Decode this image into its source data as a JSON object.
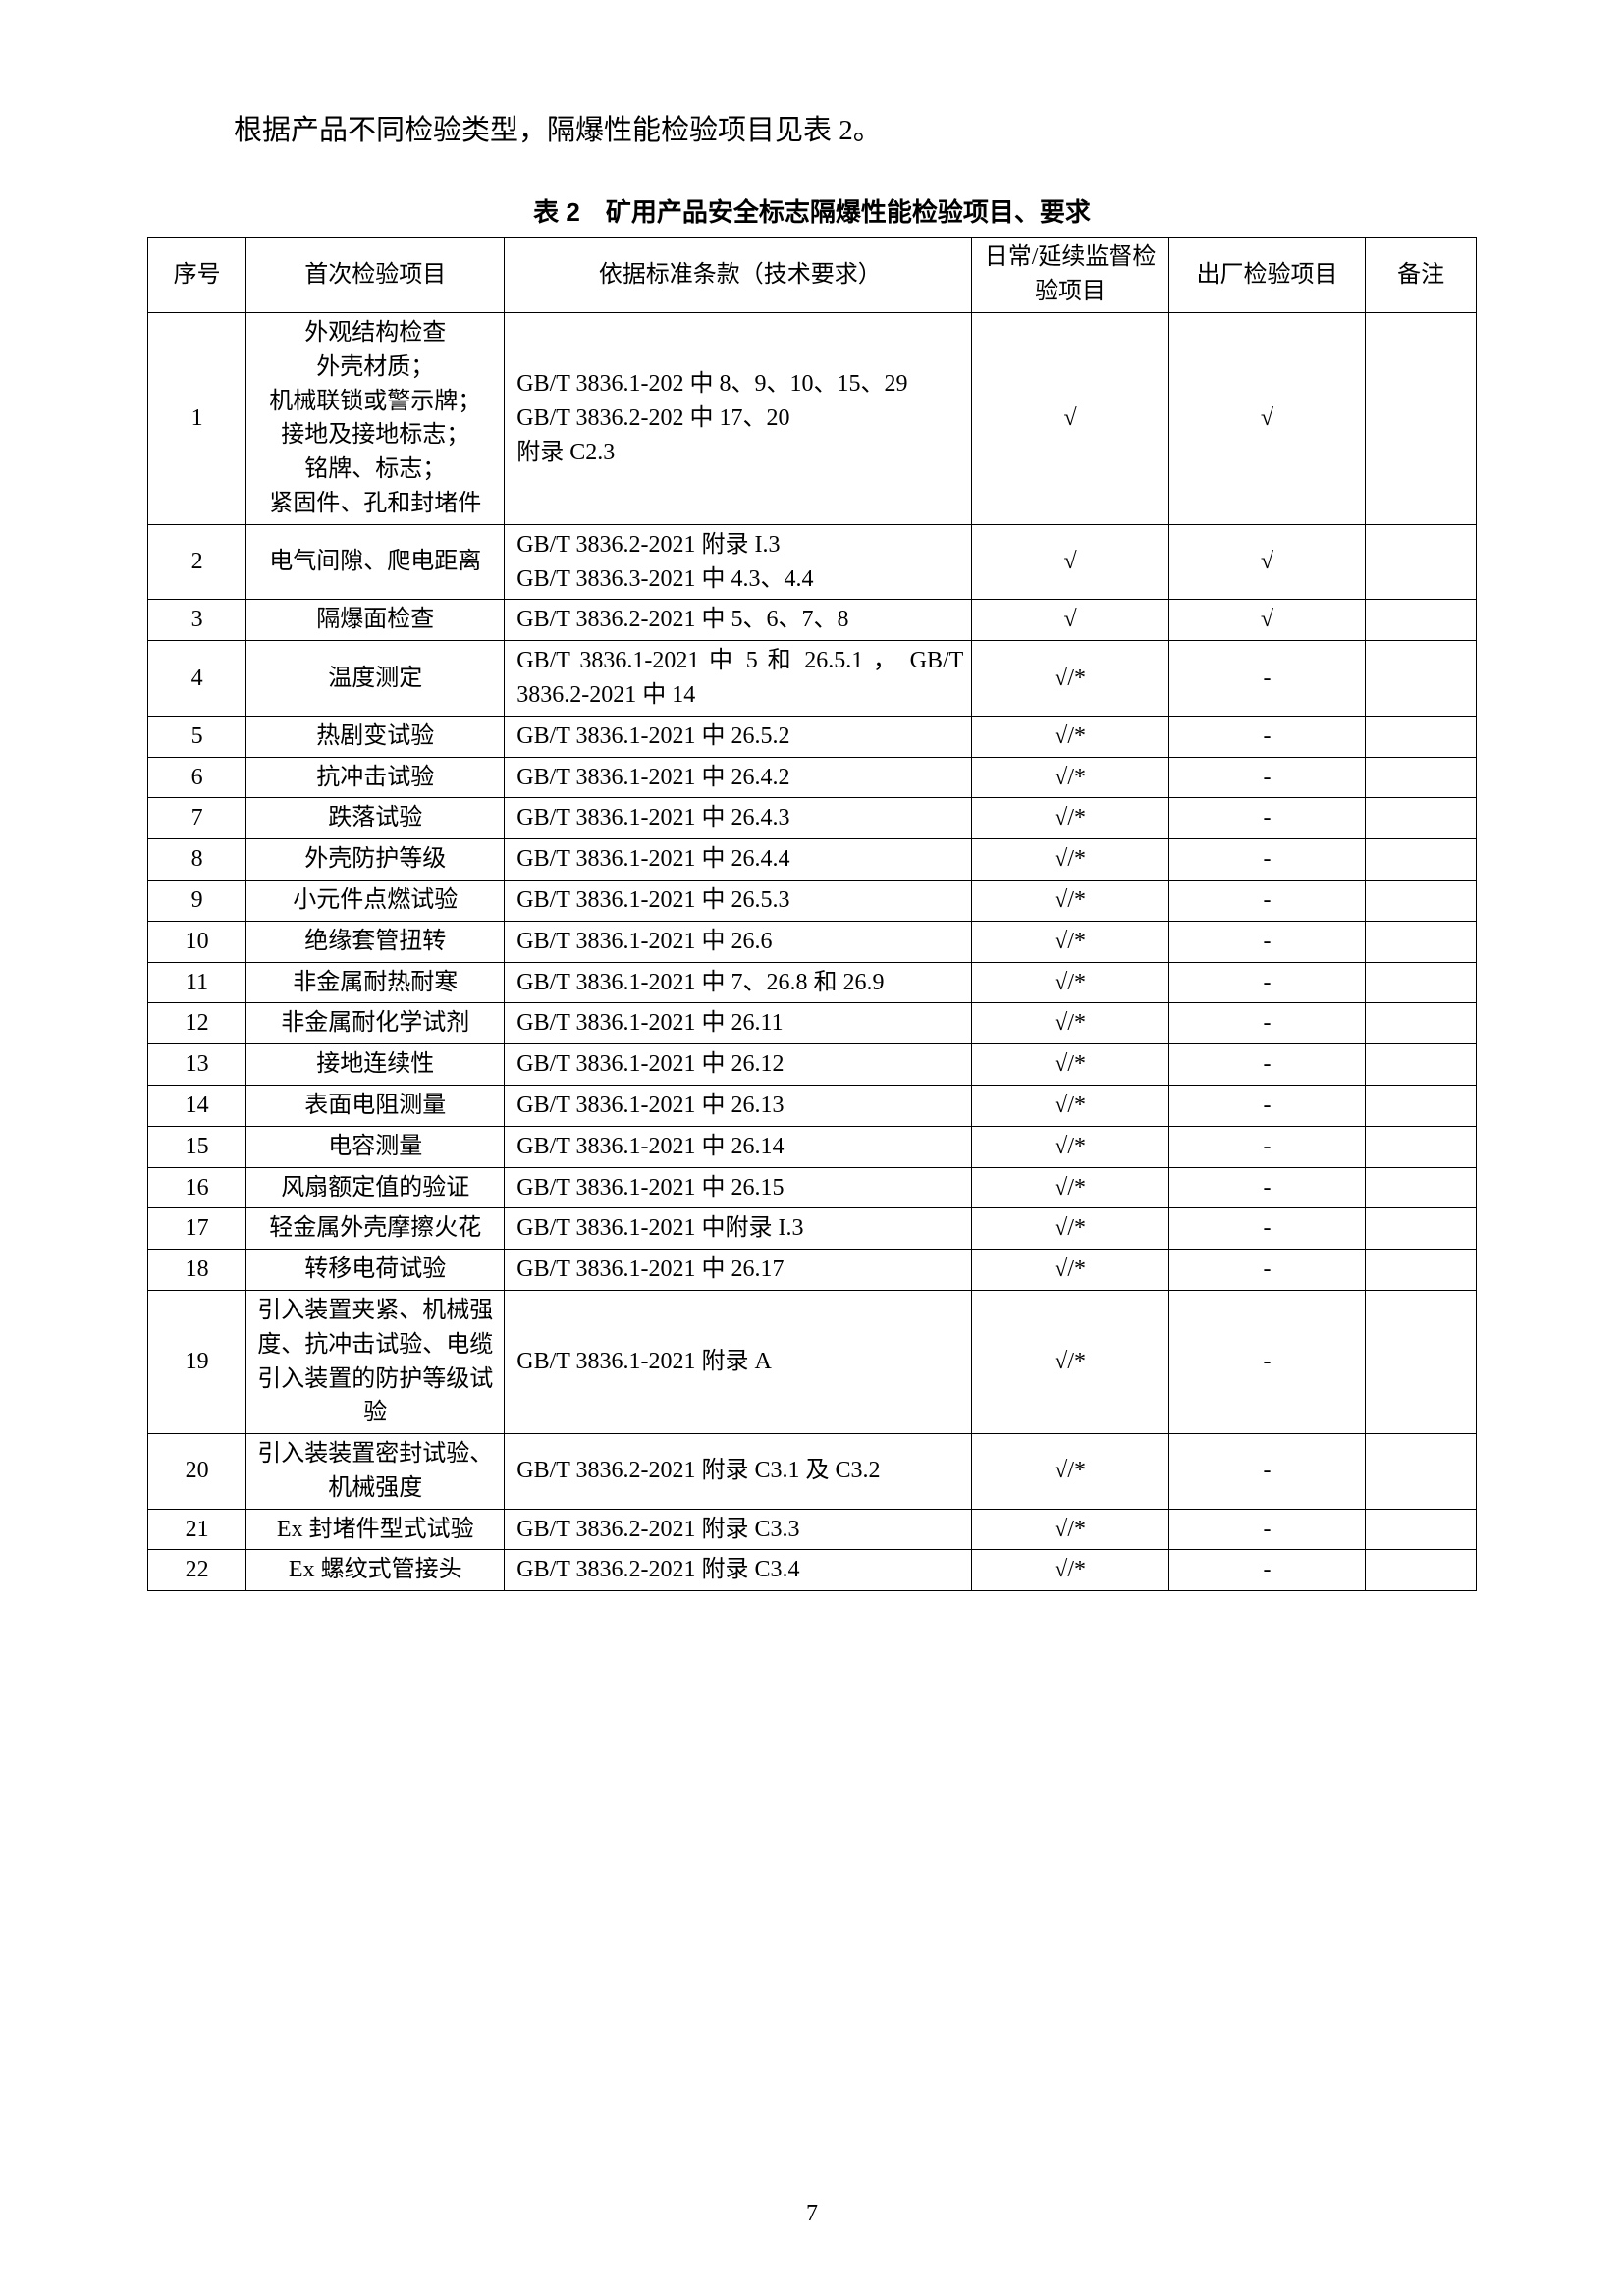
{
  "intro": "根据产品不同检验类型，隔爆性能检验项目见表 2。",
  "caption": "表 2　矿用产品安全标志隔爆性能检验项目、要求",
  "headers": {
    "index": "序号",
    "item": "首次检验项目",
    "basis": "依据标准条款（技术要求）",
    "daily": "日常/延续监督检验项目",
    "factory": "出厂检验项目",
    "remark": "备注"
  },
  "rows": [
    {
      "idx": "1",
      "item": "外观结构检查\n外壳材质；\n机械联锁或警示牌；\n接地及接地标志；\n铭牌、标志；\n紧固件、孔和封堵件",
      "basis": "GB/T 3836.1-202 中 8、9、10、15、29\nGB/T 3836.2-202 中 17、20\n附录 C2.3",
      "daily": "√",
      "factory": "√",
      "remark": ""
    },
    {
      "idx": "2",
      "item": "电气间隙、爬电距离",
      "basis": "GB/T 3836.2-2021 附录 I.3\nGB/T 3836.3-2021 中 4.3、4.4",
      "daily": "√",
      "factory": "√",
      "remark": ""
    },
    {
      "idx": "3",
      "item": "隔爆面检查",
      "basis": "GB/T 3836.2-2021 中 5、6、7、8",
      "daily": "√",
      "factory": "√",
      "remark": ""
    },
    {
      "idx": "4",
      "item": "温度测定",
      "basis": "GB/T 3836.1-2021 中 5 和 26.5.1 ， GB/T 3836.2-2021 中 14",
      "daily": "√/*",
      "factory": "-",
      "remark": ""
    },
    {
      "idx": "5",
      "item": "热剧变试验",
      "basis": "GB/T 3836.1-2021 中 26.5.2",
      "daily": "√/*",
      "factory": "-",
      "remark": ""
    },
    {
      "idx": "6",
      "item": "抗冲击试验",
      "basis": "GB/T 3836.1-2021 中 26.4.2",
      "daily": "√/*",
      "factory": "-",
      "remark": ""
    },
    {
      "idx": "7",
      "item": "跌落试验",
      "basis": "GB/T 3836.1-2021 中 26.4.3",
      "daily": "√/*",
      "factory": "-",
      "remark": ""
    },
    {
      "idx": "8",
      "item": "外壳防护等级",
      "basis": "GB/T 3836.1-2021 中 26.4.4",
      "daily": "√/*",
      "factory": "-",
      "remark": ""
    },
    {
      "idx": "9",
      "item": "小元件点燃试验",
      "basis": "GB/T 3836.1-2021 中 26.5.3",
      "daily": "√/*",
      "factory": "-",
      "remark": ""
    },
    {
      "idx": "10",
      "item": "绝缘套管扭转",
      "basis": "GB/T 3836.1-2021 中 26.6",
      "daily": "√/*",
      "factory": "-",
      "remark": ""
    },
    {
      "idx": "11",
      "item": "非金属耐热耐寒",
      "basis": "GB/T 3836.1-2021 中 7、26.8 和 26.9",
      "daily": "√/*",
      "factory": "-",
      "remark": ""
    },
    {
      "idx": "12",
      "item": "非金属耐化学试剂",
      "basis": "GB/T 3836.1-2021 中 26.11",
      "daily": "√/*",
      "factory": "-",
      "remark": ""
    },
    {
      "idx": "13",
      "item": "接地连续性",
      "basis": "GB/T 3836.1-2021 中 26.12",
      "daily": "√/*",
      "factory": "-",
      "remark": ""
    },
    {
      "idx": "14",
      "item": "表面电阻测量",
      "basis": "GB/T 3836.1-2021 中 26.13",
      "daily": "√/*",
      "factory": "-",
      "remark": ""
    },
    {
      "idx": "15",
      "item": "电容测量",
      "basis": "GB/T 3836.1-2021 中 26.14",
      "daily": "√/*",
      "factory": "-",
      "remark": ""
    },
    {
      "idx": "16",
      "item": "风扇额定值的验证",
      "basis": "GB/T 3836.1-2021 中 26.15",
      "daily": "√/*",
      "factory": "-",
      "remark": ""
    },
    {
      "idx": "17",
      "item": "轻金属外壳摩擦火花",
      "basis": "GB/T 3836.1-2021 中附录 I.3",
      "daily": "√/*",
      "factory": "-",
      "remark": ""
    },
    {
      "idx": "18",
      "item": "转移电荷试验",
      "basis": "GB/T 3836.1-2021 中 26.17",
      "daily": "√/*",
      "factory": "-",
      "remark": ""
    },
    {
      "idx": "19",
      "item": "引入装置夹紧、机械强度、抗冲击试验、电缆引入装置的防护等级试验",
      "basis": "GB/T 3836.1-2021 附录 A",
      "daily": "√/*",
      "factory": "-",
      "remark": ""
    },
    {
      "idx": "20",
      "item": "引入装装置密封试验、机械强度",
      "basis": "GB/T 3836.2-2021 附录 C3.1 及 C3.2",
      "daily": "√/*",
      "factory": "-",
      "remark": ""
    },
    {
      "idx": "21",
      "item": "Ex 封堵件型式试验",
      "basis": "GB/T 3836.2-2021 附录 C3.3",
      "daily": "√/*",
      "factory": "-",
      "remark": ""
    },
    {
      "idx": "22",
      "item": "Ex 螺纹式管接头",
      "basis": "GB/T 3836.2-2021 附录 C3.4",
      "daily": "√/*",
      "factory": "-",
      "remark": ""
    }
  ],
  "pageNumber": "7"
}
